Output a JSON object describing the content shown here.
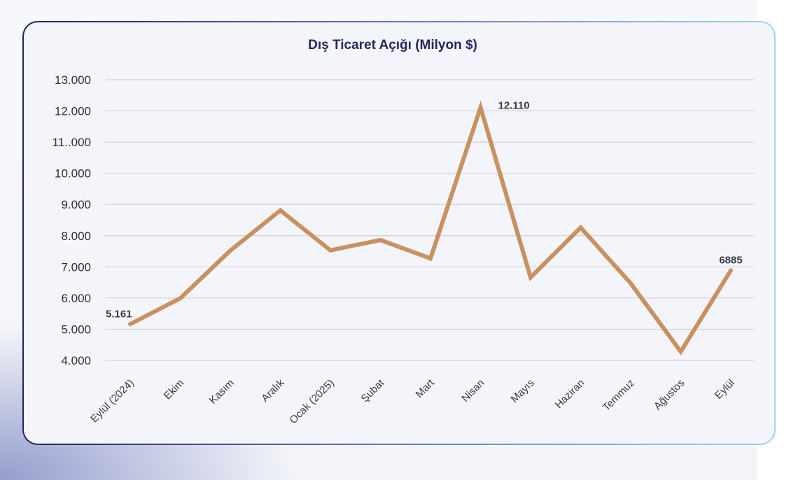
{
  "chart_data": {
    "type": "line",
    "title": "Dış Ticaret Açığı (Milyon $)",
    "xlabel": "",
    "ylabel": "",
    "ylim": [
      4000,
      13000
    ],
    "y_ticks": [
      4000,
      5000,
      6000,
      7000,
      8000,
      9000,
      10000,
      11000,
      12000,
      13000
    ],
    "y_tick_labels": [
      "4.000",
      "5.000",
      "6.000",
      "7.000",
      "8.000",
      "9.000",
      "10.000",
      "11..000",
      "12.000",
      "13.000"
    ],
    "categories": [
      "Eylül (2024)",
      "Ekim",
      "Kasım",
      "Aralık",
      "Ocak (2025)",
      "Şubat",
      "Mart",
      "Nisan",
      "Mayıs",
      "Haziran",
      "Temmuz",
      "Ağustos",
      "Eylül"
    ],
    "series": [
      {
        "values": [
          5161,
          5990,
          7520,
          8810,
          7530,
          7860,
          7270,
          12110,
          6660,
          8260,
          6470,
          4280,
          6885
        ],
        "color": "#c8915f"
      }
    ],
    "data_labels": [
      {
        "index": 0,
        "text": "5.161"
      },
      {
        "index": 7,
        "text": "12.110"
      },
      {
        "index": 12,
        "text": "6885"
      }
    ],
    "grid": true,
    "legend": "none"
  }
}
